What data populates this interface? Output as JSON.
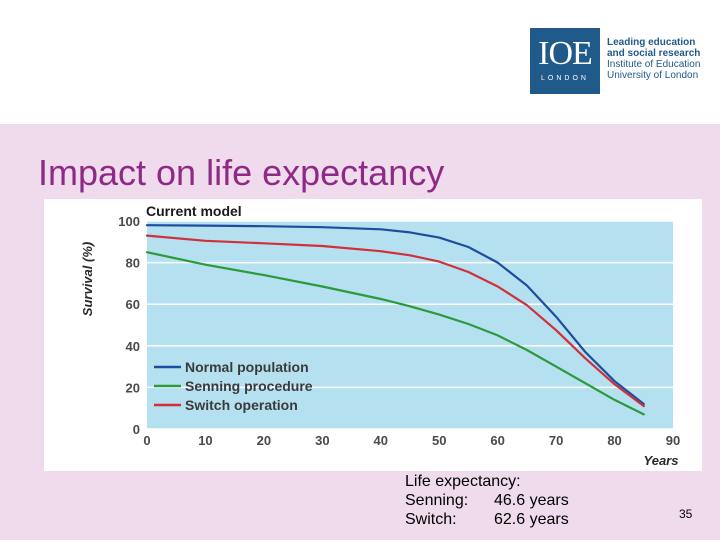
{
  "logo": {
    "mark": "IOE",
    "sub": "LONDON",
    "lines": [
      "Leading education",
      "and social research",
      "Institute of Education",
      "University of London"
    ]
  },
  "slide": {
    "title": "Impact on life expectancy",
    "number": "35"
  },
  "note": {
    "heading": "Life expectancy:",
    "rows": [
      {
        "label": "Senning:",
        "value": "46.6 years"
      },
      {
        "label": "Switch:",
        "value": "62.6 years"
      }
    ]
  },
  "colors": {
    "plot_bg": "#b5e0f0",
    "normal": "#1d4e9e",
    "senning": "#2a9a3a",
    "switch": "#d12f3a"
  },
  "chart_data": {
    "type": "line",
    "title": "Current model",
    "xlabel": "Years",
    "ylabel": "Survival (%)",
    "xlim": [
      0,
      90
    ],
    "ylim": [
      0,
      100
    ],
    "xticks": [
      0,
      10,
      20,
      30,
      40,
      50,
      60,
      70,
      80,
      90
    ],
    "yticks": [
      0,
      20,
      40,
      60,
      80,
      100
    ],
    "grid": true,
    "legend_position": "bottom-left",
    "series": [
      {
        "name": "Normal population",
        "color_key": "normal",
        "x": [
          0,
          10,
          20,
          30,
          40,
          45,
          50,
          55,
          60,
          65,
          70,
          75,
          80,
          85
        ],
        "y": [
          98,
          97.8,
          97.5,
          97,
          96,
          94.5,
          92,
          87.5,
          80,
          69,
          54,
          37,
          23,
          12
        ]
      },
      {
        "name": "Senning procedure",
        "color_key": "senning",
        "x": [
          0,
          10,
          20,
          30,
          40,
          45,
          50,
          55,
          60,
          65,
          70,
          75,
          80,
          85
        ],
        "y": [
          85,
          79,
          74,
          68.5,
          62.5,
          59,
          55,
          50.5,
          45,
          38,
          30,
          22,
          14,
          7
        ]
      },
      {
        "name": "Switch operation",
        "color_key": "switch",
        "x": [
          0,
          10,
          20,
          30,
          40,
          45,
          50,
          55,
          60,
          65,
          70,
          75,
          80,
          85
        ],
        "y": [
          93,
          90.5,
          89.3,
          88,
          85.5,
          83.5,
          80.5,
          75.5,
          68.5,
          59.5,
          47.5,
          34,
          21.5,
          11
        ]
      }
    ]
  }
}
